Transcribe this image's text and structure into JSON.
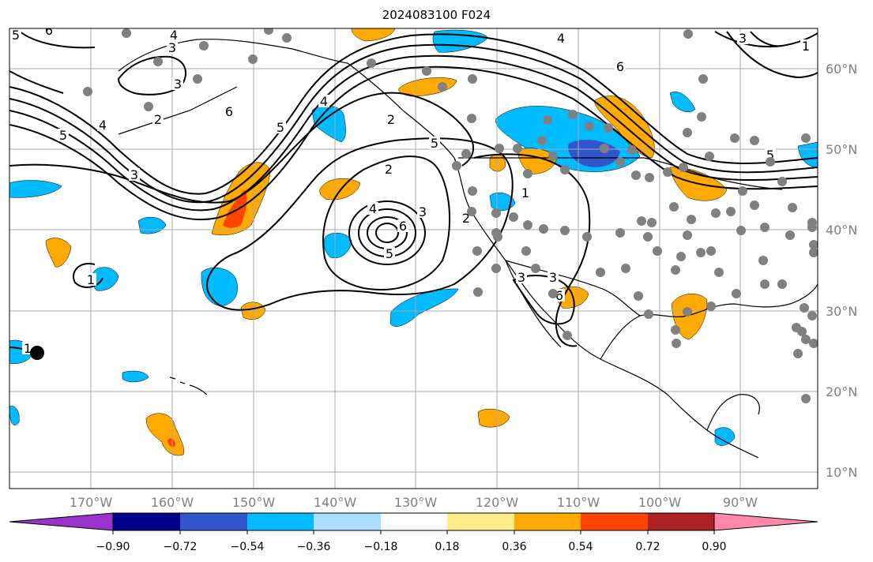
{
  "title": "2024083100 F024",
  "lat_ticks": [
    "10°N",
    "20°N",
    "30°N",
    "40°N",
    "50°N",
    "60°N"
  ],
  "lon_ticks": [
    "170°W",
    "160°W",
    "150°W",
    "140°W",
    "130°W",
    "120°W",
    "110°W",
    "100°W",
    "90°W"
  ],
  "colorbar": {
    "tick_labels": [
      "−0.90",
      "−0.72",
      "−0.54",
      "−0.36",
      "−0.18",
      "0.18",
      "0.36",
      "0.54",
      "0.72",
      "0.90"
    ],
    "colors": [
      "#9933cc",
      "#000088",
      "#3355cc",
      "#00bbff",
      "#aaddff",
      "#ffffff",
      "#ffee88",
      "#ffaa00",
      "#ff4400",
      "#aa2222",
      "#ff88aa"
    ]
  },
  "contour_labels": [
    "5",
    "6",
    "4",
    "3",
    "2",
    "5",
    "4",
    "6",
    "5",
    "3",
    "2",
    "4",
    "6",
    "5",
    "3",
    "2",
    "3",
    "1",
    "4",
    "6",
    "5",
    "2",
    "1",
    "1",
    "3",
    "6",
    "5",
    "4",
    "3",
    "1",
    "3"
  ],
  "colors": {
    "land_border": "#000000",
    "grid": "#aaaaaa",
    "station_dot": "#808080"
  }
}
